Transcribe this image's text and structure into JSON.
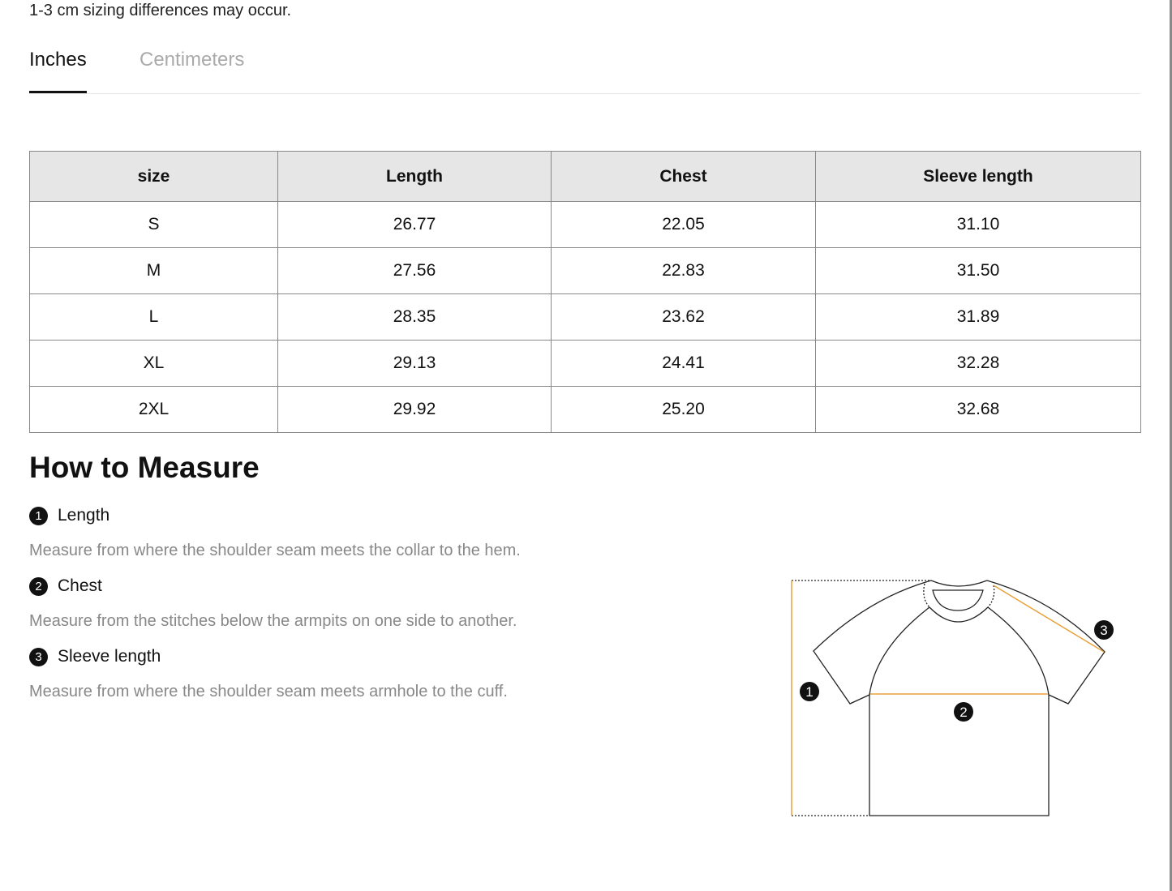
{
  "note": "1-3 cm sizing differences may occur.",
  "tabs": [
    {
      "label": "Inches",
      "active": true
    },
    {
      "label": "Centimeters",
      "active": false
    }
  ],
  "table": {
    "headers": [
      "size",
      "Length",
      "Chest",
      "Sleeve length"
    ],
    "rows": [
      [
        "S",
        "26.77",
        "22.05",
        "31.10"
      ],
      [
        "M",
        "27.56",
        "22.83",
        "31.50"
      ],
      [
        "L",
        "28.35",
        "23.62",
        "31.89"
      ],
      [
        "XL",
        "29.13",
        "24.41",
        "32.28"
      ],
      [
        "2XL",
        "29.92",
        "25.20",
        "32.68"
      ]
    ]
  },
  "measure": {
    "title": "How to Measure",
    "items": [
      {
        "num": "1",
        "label": "Length",
        "desc": "Measure from where the shoulder seam meets the collar to the hem."
      },
      {
        "num": "2",
        "label": "Chest",
        "desc": "Measure from the stitches below the armpits on one side to another."
      },
      {
        "num": "3",
        "label": "Sleeve length",
        "desc": "Measure from where the shoulder seam meets armhole to the cuff."
      }
    ]
  },
  "diagram": {
    "badges": [
      "1",
      "2",
      "3"
    ],
    "accent_color": "#e8a23a"
  }
}
